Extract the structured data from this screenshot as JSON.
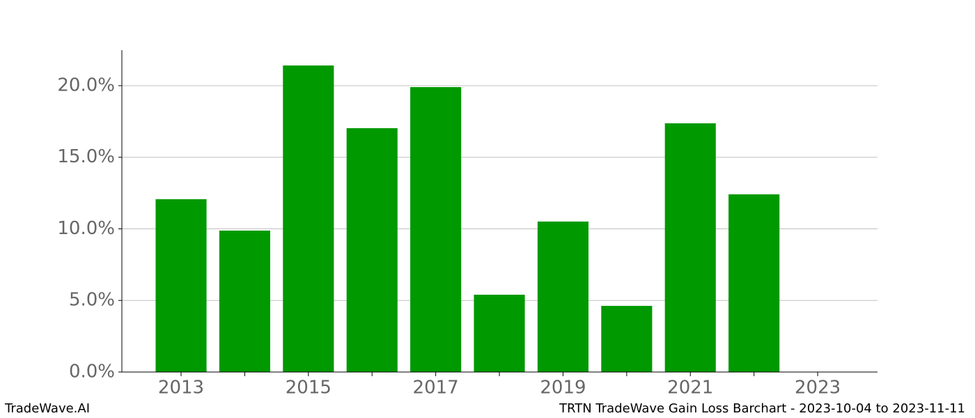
{
  "chart_data": {
    "type": "bar",
    "x": [
      2013,
      2014,
      2015,
      2016,
      2017,
      2018,
      2019,
      2020,
      2021,
      2022
    ],
    "values": [
      12.07,
      9.88,
      21.41,
      17.03,
      19.9,
      5.4,
      10.51,
      4.62,
      17.37,
      12.41
    ],
    "color": "#009900",
    "xlim": [
      2012.07,
      2023.94
    ],
    "xticks": [
      2013,
      2015,
      2017,
      2019,
      2021,
      2023
    ],
    "xticks_minor": [
      2014,
      2016,
      2018,
      2020,
      2022
    ],
    "ylim": [
      0,
      22.48
    ],
    "yticks": [
      {
        "value": 0,
        "label": "0.0%"
      },
      {
        "value": 5,
        "label": "5.0%"
      },
      {
        "value": 10,
        "label": "10.0%"
      },
      {
        "value": 15,
        "label": "15.0%"
      },
      {
        "value": 20,
        "label": "20.0%"
      }
    ],
    "grid": true
  },
  "footer": {
    "left": "TradeWave.AI",
    "right": "TRTN TradeWave Gain Loss Barchart - 2023-10-04 to 2023-11-11"
  }
}
